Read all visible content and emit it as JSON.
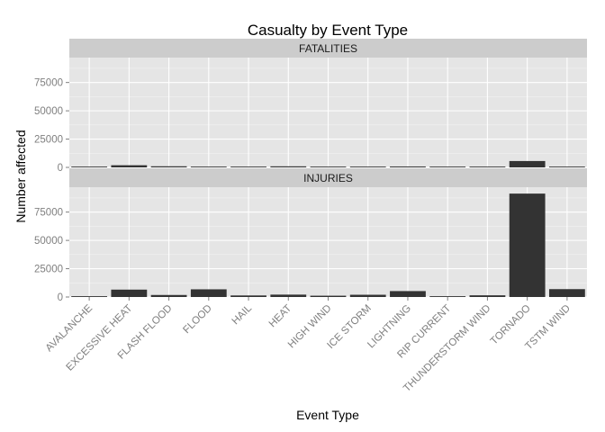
{
  "chart_data": {
    "type": "bar",
    "title": "Casualty by Event Type",
    "xlabel": "Event Type",
    "ylabel": "Number affected",
    "ylim": [
      0,
      97000
    ],
    "yticks": [
      0,
      25000,
      50000,
      75000
    ],
    "ytick_labels": [
      "0",
      "25000",
      "50000",
      "75000"
    ],
    "grid": true,
    "theme": "ggplot-grey",
    "facet_layout": "stacked vertically, shared x axis",
    "categories": [
      "AVALANCHE",
      "EXCESSIVE HEAT",
      "FLASH FLOOD",
      "FLOOD",
      "HAIL",
      "HEAT",
      "HIGH WIND",
      "ICE STORM",
      "LIGHTNING",
      "RIP CURRENT",
      "THUNDERSTORM WIND",
      "TORNADO",
      "TSTM WIND"
    ],
    "panels": [
      {
        "name": "FATALITIES",
        "values": [
          224,
          1903,
          978,
          470,
          15,
          937,
          248,
          89,
          816,
          368,
          133,
          5633,
          504
        ]
      },
      {
        "name": "INJURIES",
        "values": [
          170,
          6525,
          1777,
          6789,
          1361,
          2100,
          1137,
          1975,
          5230,
          232,
          1488,
          91346,
          6957
        ]
      }
    ],
    "colors": {
      "bar": "#333333",
      "panel_bg": "#e5e5e5",
      "grid_major": "#ffffff",
      "grid_minor": "#f2f2f2",
      "strip_bg": "#cccccc"
    }
  }
}
